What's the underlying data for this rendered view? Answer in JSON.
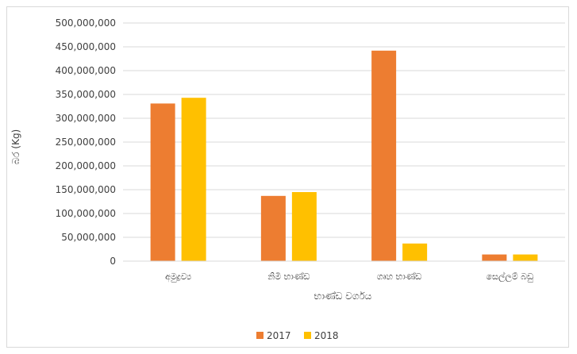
{
  "chart_data": {
    "type": "bar",
    "categories": [
      "අමුද්‍රව්‍ය",
      "නිමි භාණ්ඩ",
      "ගෘහ භාණ්ඩ",
      "සෙල්ලම් බඩු"
    ],
    "series": [
      {
        "name": "2017",
        "values": [
          331000000,
          137000000,
          442000000,
          14000000
        ],
        "color": "#ed7d31"
      },
      {
        "name": "2018",
        "values": [
          343000000,
          145000000,
          37000000,
          14000000
        ],
        "color": "#ffc000"
      }
    ],
    "title": "",
    "xlabel": "භාණ්ඩ වර්ගය",
    "ylabel": "බර (Kg)",
    "ylim": [
      0,
      500000000
    ],
    "yticks": [
      "0",
      "50,000,000",
      "100,000,000",
      "150,000,000",
      "200,000,000",
      "250,000,000",
      "300,000,000",
      "350,000,000",
      "400,000,000",
      "450,000,000",
      "500,000,000"
    ],
    "grid": true,
    "legend_position": "bottom"
  }
}
